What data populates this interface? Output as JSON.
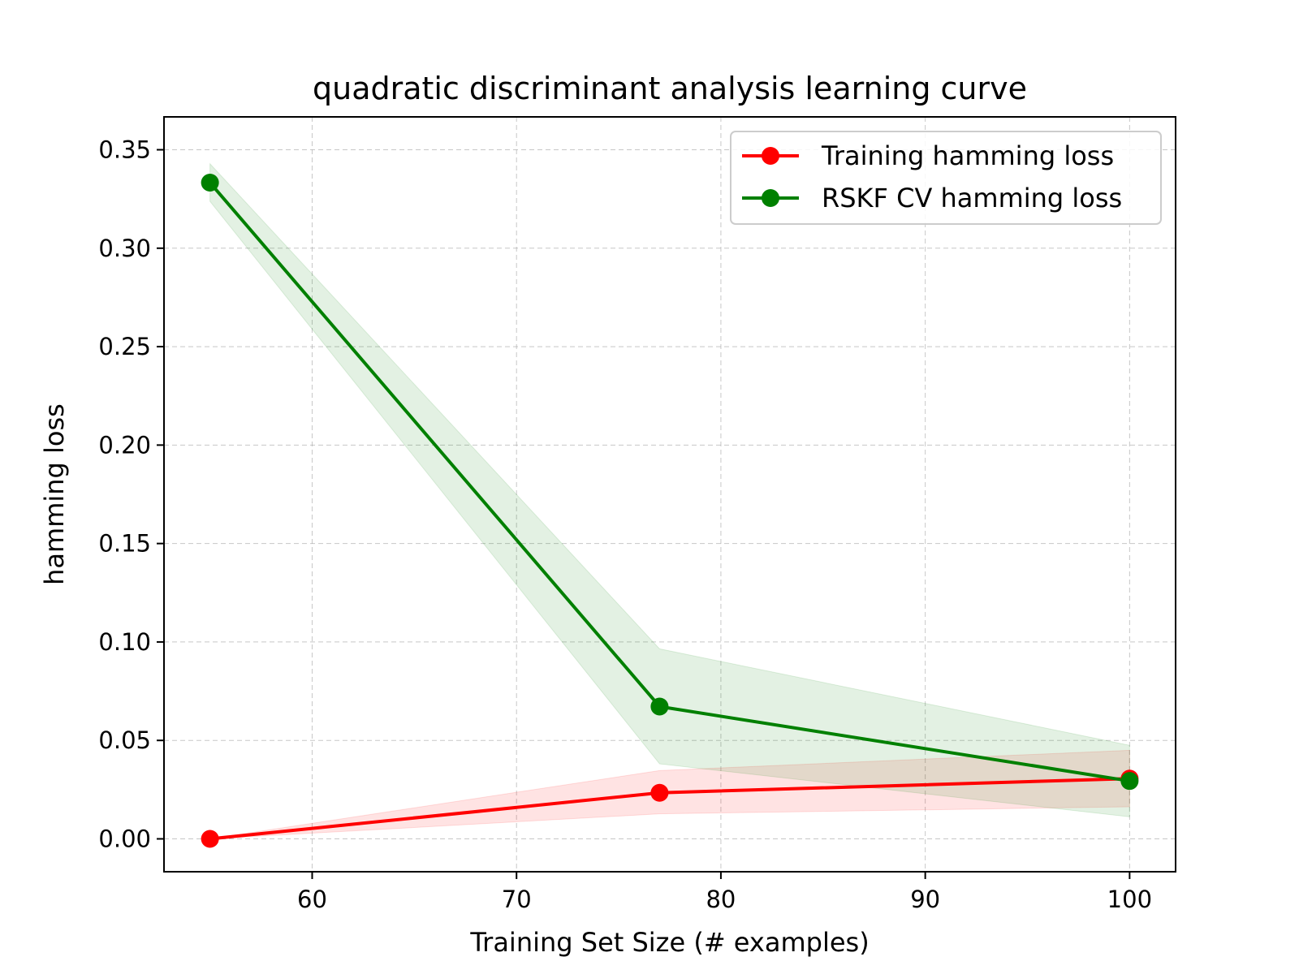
{
  "chart_data": {
    "type": "line",
    "title": "quadratic discriminant analysis learning curve",
    "xlabel": "Training Set Size (# examples)",
    "ylabel": "hamming loss",
    "xlim": [
      52.75,
      102.25
    ],
    "ylim": [
      -0.0167,
      0.3667
    ],
    "x_ticks": [
      60,
      70,
      80,
      90,
      100
    ],
    "x_tick_labels": [
      "60",
      "70",
      "80",
      "90",
      "100"
    ],
    "y_ticks": [
      0.0,
      0.05,
      0.1,
      0.15,
      0.2,
      0.25,
      0.3,
      0.35
    ],
    "y_tick_labels": [
      "0.00",
      "0.05",
      "0.10",
      "0.15",
      "0.20",
      "0.25",
      "0.30",
      "0.35"
    ],
    "grid": true,
    "legend_position": "top-right",
    "x": [
      55,
      77,
      100
    ],
    "series": [
      {
        "name": "Training hamming loss",
        "color": "#ff0000",
        "values": [
          0.0,
          0.0234,
          0.0306
        ],
        "band_lower": [
          0.0,
          0.0127,
          0.0163
        ],
        "band_upper": [
          0.0,
          0.0347,
          0.045
        ]
      },
      {
        "name": "RSKF CV hamming loss",
        "color": "#008000",
        "values": [
          0.3333,
          0.0672,
          0.0294
        ],
        "band_lower": [
          0.3238,
          0.0381,
          0.0112
        ],
        "band_upper": [
          0.3429,
          0.0965,
          0.0475
        ]
      }
    ]
  }
}
